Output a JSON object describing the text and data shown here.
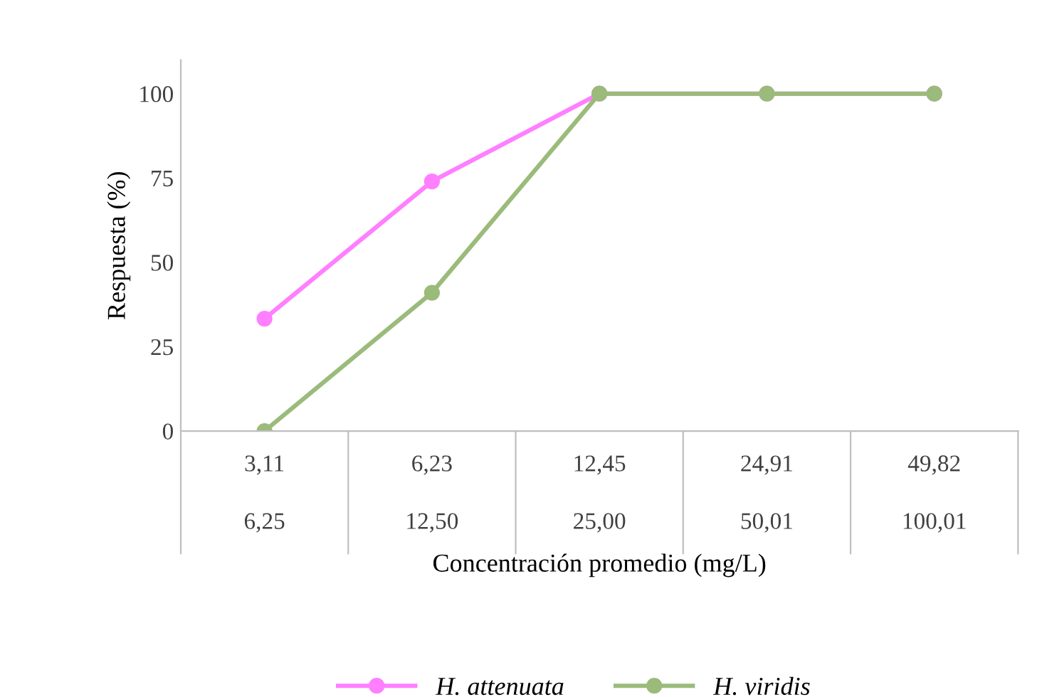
{
  "chart_data": {
    "type": "line",
    "xlabel": "Concentración promedio (mg/L)",
    "ylabel": "Respuesta (%)",
    "categories": [
      "3,11\n6,25",
      "6,23\n12,50",
      "12,45\n25,00",
      "24,91\n50,01",
      "49,82\n100,01"
    ],
    "series": [
      {
        "name": "H. attenuata",
        "color": "#ff7fff",
        "values": [
          33.3,
          74,
          100,
          100,
          100
        ]
      },
      {
        "name": "H. viridis",
        "color": "#9bbb7a",
        "values": [
          0,
          41,
          100,
          100,
          100
        ]
      }
    ],
    "ylim": [
      0,
      110
    ],
    "yticks": [
      0,
      25,
      50,
      75,
      100
    ],
    "grid": false,
    "legend": "bottom",
    "marker": "circle",
    "line_style": "solid"
  }
}
